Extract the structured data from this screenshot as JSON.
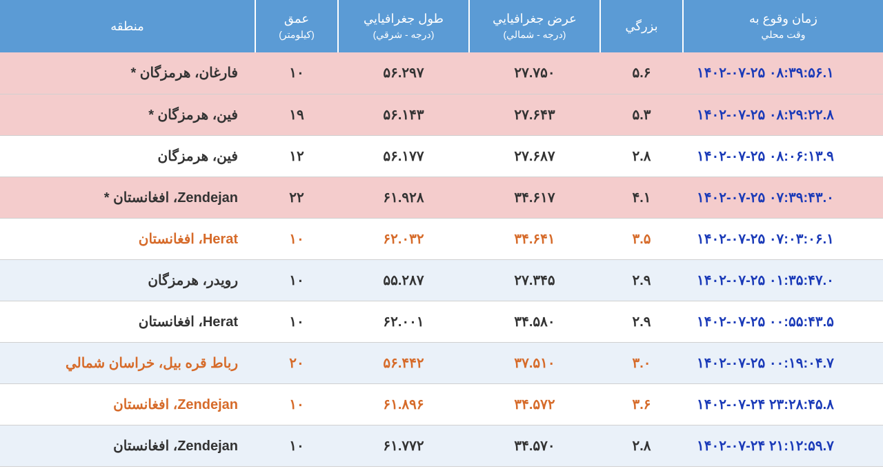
{
  "headers": {
    "time": {
      "main": "زمان وقوع به",
      "sub": "وقت محلي"
    },
    "magnitude": {
      "main": "بزرگي"
    },
    "latitude": {
      "main": "عرض جغرافيايي",
      "sub": "(درجه - شمالي)"
    },
    "longitude": {
      "main": "طول جغرافيايي",
      "sub": "(درجه - شرقي)"
    },
    "depth": {
      "main": "عمق",
      "sub": "(کيلومتر)"
    },
    "region": {
      "main": "منطقه"
    }
  },
  "rows": [
    {
      "rowClass": "row-pink",
      "txtClass": "txt-black",
      "timeClass": "txt-blue",
      "time": "۱۴۰۲-۰۷-۲۵ ۰۸:۳۹:۵۶.۱",
      "mag": "۵.۶",
      "lat": "۲۷.۷۵۰",
      "lon": "۵۶.۲۹۷",
      "depth": "۱۰",
      "region": "فارغان، هرمزگان *"
    },
    {
      "rowClass": "row-pink",
      "txtClass": "txt-black",
      "timeClass": "txt-blue",
      "time": "۱۴۰۲-۰۷-۲۵ ۰۸:۲۹:۲۲.۸",
      "mag": "۵.۳",
      "lat": "۲۷.۶۴۳",
      "lon": "۵۶.۱۴۳",
      "depth": "۱۹",
      "region": "فین، هرمزگان *"
    },
    {
      "rowClass": "row-white",
      "txtClass": "txt-black",
      "timeClass": "txt-blue",
      "time": "۱۴۰۲-۰۷-۲۵ ۰۸:۰۶:۱۳.۹",
      "mag": "۲.۸",
      "lat": "۲۷.۶۸۷",
      "lon": "۵۶.۱۷۷",
      "depth": "۱۲",
      "region": "فین، هرمزگان"
    },
    {
      "rowClass": "row-pink",
      "txtClass": "txt-black",
      "timeClass": "txt-blue",
      "time": "۱۴۰۲-۰۷-۲۵ ۰۷:۳۹:۴۳.۰",
      "mag": "۴.۱",
      "lat": "۳۴.۶۱۷",
      "lon": "۶۱.۹۲۸",
      "depth": "۲۲",
      "region": "Zendejan، افغانستان *"
    },
    {
      "rowClass": "row-white",
      "txtClass": "txt-orange",
      "timeClass": "txt-blue",
      "time": "۱۴۰۲-۰۷-۲۵ ۰۷:۰۳:۰۶.۱",
      "mag": "۳.۵",
      "lat": "۳۴.۶۴۱",
      "lon": "۶۲.۰۳۲",
      "depth": "۱۰",
      "region": "Herat، افغانستان"
    },
    {
      "rowClass": "row-lightblue",
      "txtClass": "txt-black",
      "timeClass": "txt-blue",
      "time": "۱۴۰۲-۰۷-۲۵ ۰۱:۳۵:۴۷.۰",
      "mag": "۲.۹",
      "lat": "۲۷.۳۴۵",
      "lon": "۵۵.۲۸۷",
      "depth": "۱۰",
      "region": "رویدر، هرمزگان"
    },
    {
      "rowClass": "row-white",
      "txtClass": "txt-black",
      "timeClass": "txt-blue",
      "time": "۱۴۰۲-۰۷-۲۵ ۰۰:۵۵:۴۳.۵",
      "mag": "۲.۹",
      "lat": "۳۴.۵۸۰",
      "lon": "۶۲.۰۰۱",
      "depth": "۱۰",
      "region": "Herat، افغانستان"
    },
    {
      "rowClass": "row-lightblue",
      "txtClass": "txt-orange",
      "timeClass": "txt-blue",
      "time": "۱۴۰۲-۰۷-۲۵ ۰۰:۱۹:۰۴.۷",
      "mag": "۳.۰",
      "lat": "۳۷.۵۱۰",
      "lon": "۵۶.۴۴۲",
      "depth": "۲۰",
      "region": "رباط قره بیل، خراسان شمالي"
    },
    {
      "rowClass": "row-white",
      "txtClass": "txt-orange",
      "timeClass": "txt-blue",
      "time": "۱۴۰۲-۰۷-۲۴ ۲۳:۲۸:۴۵.۸",
      "mag": "۳.۶",
      "lat": "۳۴.۵۷۲",
      "lon": "۶۱.۸۹۶",
      "depth": "۱۰",
      "region": "Zendejan، افغانستان"
    },
    {
      "rowClass": "row-lightblue",
      "txtClass": "txt-black",
      "timeClass": "txt-blue",
      "time": "۱۴۰۲-۰۷-۲۴ ۲۱:۱۲:۵۹.۷",
      "mag": "۲.۸",
      "lat": "۳۴.۵۷۰",
      "lon": "۶۱.۷۷۲",
      "depth": "۱۰",
      "region": "Zendejan، افغانستان"
    }
  ]
}
